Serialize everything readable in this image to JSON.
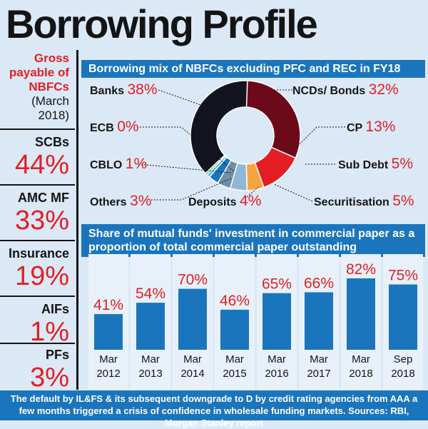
{
  "title": "Borrowing Profile",
  "left_panel": {
    "heading_red": "Gross payable of NBFCs",
    "heading_sub": "(March 2018)",
    "items": [
      {
        "name": "SCBs",
        "value": "44%"
      },
      {
        "name": "AMC MF",
        "value": "33%"
      },
      {
        "name": "Insurance",
        "value": "19%"
      },
      {
        "name": "AIFs",
        "value": "1%"
      },
      {
        "name": "PFs",
        "value": "3%"
      }
    ]
  },
  "donut_title": "Borrowing mix of NBFCs excluding PFC and REC in FY18",
  "bar_title": "Share of mutual funds' investment in commercial paper as a proportion of total commercial paper outstanding",
  "footer": "The default by IL&FS & its subsequent downgrade to D by credit rating agencies from AAA a few months triggered a crisis of confidence in wholesale funding markets. Sources: RBI, Morgan Stanley report",
  "colors": {
    "accent_blue": "#1b75bc",
    "red": "#e31e24",
    "dark": "#141414",
    "background": "#dbe9f6"
  },
  "chart_data": [
    {
      "type": "pie",
      "title": "Borrowing mix of NBFCs excluding PFC and REC in FY18",
      "donut": true,
      "slices": [
        {
          "label": "NCDs/ Bonds",
          "value": 32,
          "display": "32%",
          "color": "#6d0a1a"
        },
        {
          "label": "CP",
          "value": 13,
          "display": "13%",
          "color": "#e31e24"
        },
        {
          "label": "Sub Debt",
          "value": 5,
          "display": "5%",
          "color": "#f7a541"
        },
        {
          "label": "Securitisation",
          "value": 5,
          "display": "5%",
          "color": "#8fb8d8"
        },
        {
          "label": "Deposits",
          "value": 4,
          "display": "4%",
          "color": "#6f8fa6"
        },
        {
          "label": "Others",
          "value": 3,
          "display": "3%",
          "color": "#1b75bc"
        },
        {
          "label": "CBLO",
          "value": 1,
          "display": "1%",
          "color": "#4fc3e8"
        },
        {
          "label": "ECB",
          "value": 0,
          "display": "0%",
          "color": "#4caf50"
        },
        {
          "label": "Banks",
          "value": 38,
          "display": "38%",
          "color": "#141420"
        }
      ]
    },
    {
      "type": "bar",
      "title": "Share of mutual funds' investment in commercial paper as a proportion of total commercial paper outstanding",
      "categories": [
        "Mar 2012",
        "Mar 2013",
        "Mar 2014",
        "Mar 2015",
        "Mar 2016",
        "Mar 2017",
        "Mar 2018",
        "Sep 2018"
      ],
      "category_lines": [
        [
          "Mar",
          "2012"
        ],
        [
          "Mar",
          "2013"
        ],
        [
          "Mar",
          "2014"
        ],
        [
          "Mar",
          "2015"
        ],
        [
          "Mar",
          "2016"
        ],
        [
          "Mar",
          "2017"
        ],
        [
          "Mar",
          "2018"
        ],
        [
          "Sep",
          "2018"
        ]
      ],
      "values": [
        41,
        54,
        70,
        46,
        65,
        66,
        82,
        75
      ],
      "labels": [
        "41%",
        "54%",
        "70%",
        "46%",
        "65%",
        "66%",
        "82%",
        "75%"
      ],
      "ylim": [
        0,
        100
      ],
      "xlabel": "",
      "ylabel": "",
      "grid": false,
      "bar_color": "#1b75bc",
      "label_color": "#e31e24"
    }
  ]
}
